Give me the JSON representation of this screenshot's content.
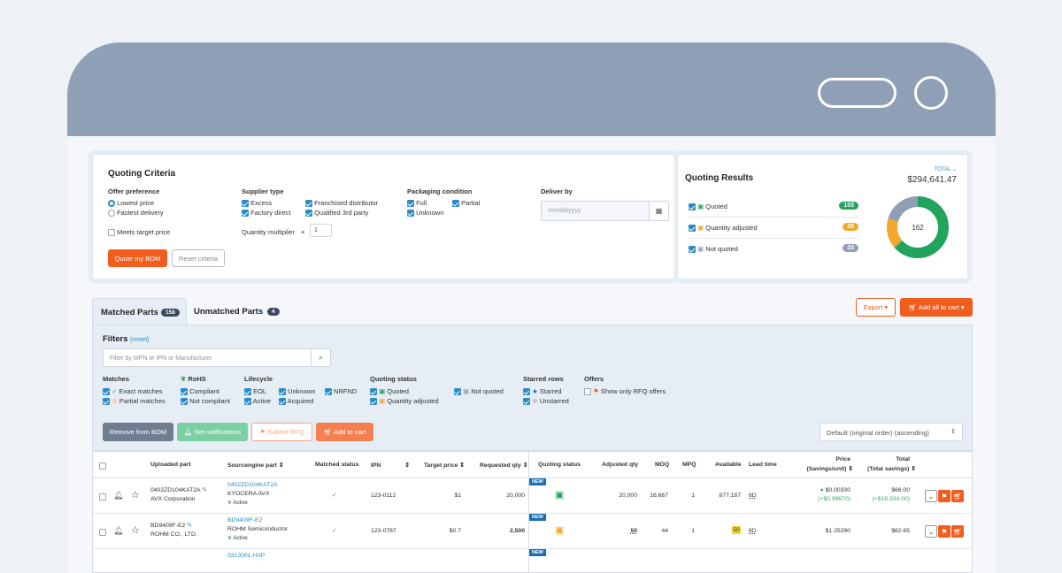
{
  "criteria": {
    "title": "Quoting Criteria",
    "offer_preference": {
      "label": "Offer preference",
      "options": [
        "Lowest price",
        "Fastest delivery"
      ]
    },
    "meets_target": "Meets target price",
    "supplier_type": {
      "label": "Supplier type",
      "options": [
        "Excess",
        "Factory direct",
        "Franchised distributor",
        "Qualified 3rd party"
      ]
    },
    "quantity_multiplier": {
      "label": "Quantity multiplier",
      "symbol": "×",
      "value": "1"
    },
    "packaging": {
      "label": "Packaging condition",
      "options": [
        "Full",
        "Unknown",
        "Partial"
      ]
    },
    "deliver_by": {
      "label": "Deliver by",
      "placeholder": "mm/dd/yyyy"
    },
    "quote_button": "Quote my BOM",
    "reset_button": "Reset criteria"
  },
  "results": {
    "title": "Quoting Results",
    "total_label": "TOTAL ⌄",
    "total": "$294,641.47",
    "rows": [
      {
        "label": "Quoted",
        "count": "103",
        "color": "#22a45d"
      },
      {
        "label": "Quantity adjusted",
        "count": "26",
        "color": "#f0a830"
      },
      {
        "label": "Not quoted",
        "count": "33",
        "color": "#8fa0b6"
      }
    ],
    "donut_center": "162"
  },
  "tabs": [
    {
      "label": "Matched Parts",
      "count": "158"
    },
    {
      "label": "Unmatched Parts",
      "count": "4"
    }
  ],
  "actions": {
    "export": "Export ▾",
    "add_all": "Add all to cart ▾"
  },
  "filters": {
    "title": "Filters",
    "reset": "(reset)",
    "search_placeholder": "Filter by MPN or IPN or Manufacturer",
    "matches": {
      "label": "Matches",
      "options": [
        "Exact matches",
        "Partial matches"
      ]
    },
    "rohs": {
      "label": "RoHS",
      "options": [
        "Compliant",
        "Not compliant"
      ]
    },
    "lifecycle": {
      "label": "Lifecycle",
      "options": [
        "EOL",
        "Active",
        "Unknown",
        "Acquired",
        "NRFND"
      ]
    },
    "quoting_status": {
      "label": "Quoting status",
      "options": [
        "Quoted",
        "Quantity adjusted",
        "Not quoted"
      ]
    },
    "starred": {
      "label": "Starred rows",
      "options": [
        "Starred",
        "Unstarred"
      ]
    },
    "offers": {
      "label": "Offers",
      "options": [
        "Show only RFQ offers"
      ]
    }
  },
  "toolbar": {
    "remove": "Remove from BOM",
    "notify": "Set notifications",
    "rfq": "Submit RFQ",
    "cart": "Add to cart",
    "sort": "Default (original order) (ascending)"
  },
  "table": {
    "headers": {
      "uploaded": "Uploaded part",
      "source": "Sourcengine part",
      "matched": "Matched status",
      "ipn": "IPN",
      "target": "Target price",
      "requested": "Requested qty",
      "quoting": "Quoting status",
      "adjusted": "Adjusted qty",
      "moq": "MOQ",
      "mpq": "MPQ",
      "available": "Available",
      "lead": "Lead time",
      "price": "Price",
      "price_sub": "(Savings/unit)",
      "total": "Total",
      "total_sub": "(Total savings)"
    },
    "new_tag": "NEW",
    "rows": [
      {
        "uploaded_part": "0402ZD104KAT2A",
        "uploaded_mfr": "AVX Corporation",
        "source_part": "0402ZD104KAT2A",
        "source_mfr": "KYOCERA AVX",
        "source_status": "Active",
        "ipn": "123-0112",
        "target": "$1",
        "requested": "20,000",
        "adjusted": "20,000",
        "moq": "16,667",
        "mpq": "1",
        "available": "877,187",
        "lead": "6D",
        "price": "$0.00330",
        "savings": "(+$0.99670)",
        "total": "$66.00",
        "total_savings": "(+$19,934.00)"
      },
      {
        "uploaded_part": "BD9409F-E2",
        "uploaded_mfr": "ROHM CO., LTD.",
        "source_part": "BD9409F-E2",
        "source_mfr": "ROHM Semiconductor",
        "source_status": "Active",
        "ipn": "123-0787",
        "target": "$0.7",
        "requested": "2,500",
        "adjusted": "50",
        "moq": "44",
        "mpq": "1",
        "available": "50",
        "lead": "6D",
        "price": "$1.25290",
        "savings": "",
        "total": "$62.65",
        "total_savings": ""
      },
      {
        "source_part": "0313001.HXP"
      }
    ]
  }
}
